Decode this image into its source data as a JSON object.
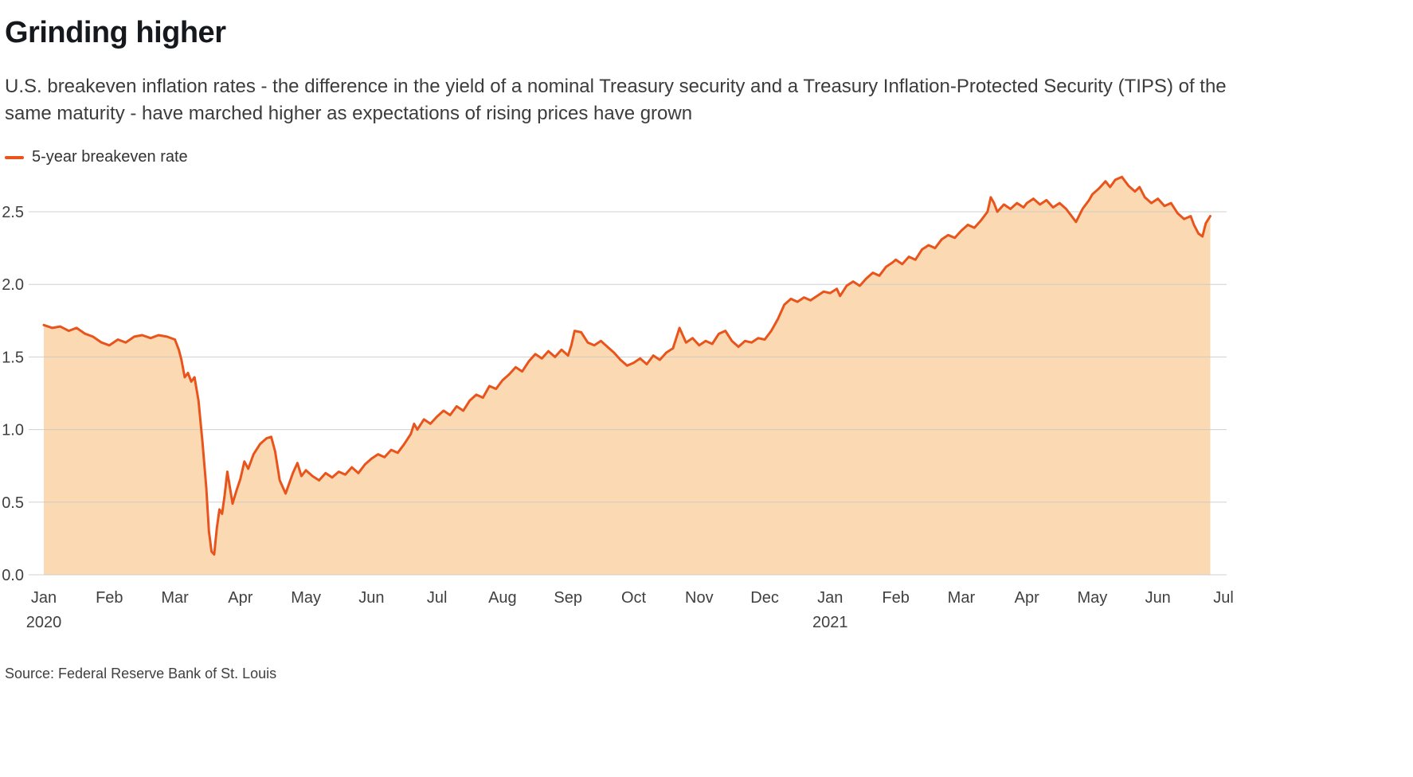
{
  "header": {
    "title": "Grinding higher",
    "subtitle": "U.S. breakeven inflation rates - the difference in the yield of a nominal Treasury security and a Treasury Inflation-Protected Security (TIPS) of the same maturity - have marched higher as expectations of rising prices have grown"
  },
  "legend": {
    "label": "5-year breakeven rate"
  },
  "footer": {
    "source": "Source: Federal Reserve Bank of St. Louis"
  },
  "chart_data": {
    "type": "area",
    "title": "Grinding higher",
    "xlabel": "",
    "ylabel": "",
    "x_unit": "months since Jan 2020 (0 = Jan 2020, 18 = Jul 2021)",
    "x_tick_labels": [
      "Jan",
      "Feb",
      "Mar",
      "Apr",
      "May",
      "Jun",
      "Jul",
      "Aug",
      "Sep",
      "Oct",
      "Nov",
      "Dec",
      "Jan",
      "Feb",
      "Mar",
      "Apr",
      "May",
      "Jun",
      "Jul"
    ],
    "year_labels": [
      {
        "position": 0,
        "label": "2020"
      },
      {
        "position": 12,
        "label": "2021"
      }
    ],
    "y_ticks": [
      0.0,
      0.5,
      1.0,
      1.5,
      2.0,
      2.5
    ],
    "ylim": [
      0,
      2.5
    ],
    "grid": "horizontal",
    "legend_position": "top-left",
    "line_color": "#e8541c",
    "fill_color": "#fbd9b2",
    "series": [
      {
        "name": "5-year breakeven rate",
        "points": [
          [
            0,
            1.72
          ],
          [
            0.13,
            1.7
          ],
          [
            0.25,
            1.71
          ],
          [
            0.38,
            1.68
          ],
          [
            0.5,
            1.7
          ],
          [
            0.63,
            1.66
          ],
          [
            0.75,
            1.64
          ],
          [
            0.88,
            1.6
          ],
          [
            1,
            1.58
          ],
          [
            1.13,
            1.62
          ],
          [
            1.25,
            1.6
          ],
          [
            1.38,
            1.64
          ],
          [
            1.5,
            1.65
          ],
          [
            1.63,
            1.63
          ],
          [
            1.75,
            1.65
          ],
          [
            1.88,
            1.64
          ],
          [
            2,
            1.62
          ],
          [
            2.06,
            1.55
          ],
          [
            2.1,
            1.48
          ],
          [
            2.15,
            1.36
          ],
          [
            2.2,
            1.39
          ],
          [
            2.25,
            1.33
          ],
          [
            2.3,
            1.36
          ],
          [
            2.36,
            1.2
          ],
          [
            2.42,
            0.92
          ],
          [
            2.48,
            0.6
          ],
          [
            2.52,
            0.3
          ],
          [
            2.56,
            0.16
          ],
          [
            2.6,
            0.14
          ],
          [
            2.64,
            0.32
          ],
          [
            2.68,
            0.45
          ],
          [
            2.72,
            0.42
          ],
          [
            2.76,
            0.55
          ],
          [
            2.8,
            0.71
          ],
          [
            2.84,
            0.6
          ],
          [
            2.88,
            0.49
          ],
          [
            2.94,
            0.58
          ],
          [
            3,
            0.66
          ],
          [
            3.06,
            0.78
          ],
          [
            3.12,
            0.73
          ],
          [
            3.2,
            0.83
          ],
          [
            3.3,
            0.9
          ],
          [
            3.4,
            0.94
          ],
          [
            3.47,
            0.95
          ],
          [
            3.53,
            0.85
          ],
          [
            3.6,
            0.65
          ],
          [
            3.69,
            0.56
          ],
          [
            3.8,
            0.7
          ],
          [
            3.87,
            0.77
          ],
          [
            3.93,
            0.68
          ],
          [
            4,
            0.72
          ],
          [
            4.1,
            0.68
          ],
          [
            4.2,
            0.65
          ],
          [
            4.3,
            0.7
          ],
          [
            4.4,
            0.67
          ],
          [
            4.5,
            0.71
          ],
          [
            4.6,
            0.69
          ],
          [
            4.7,
            0.74
          ],
          [
            4.8,
            0.7
          ],
          [
            4.9,
            0.76
          ],
          [
            5,
            0.8
          ],
          [
            5.1,
            0.83
          ],
          [
            5.2,
            0.81
          ],
          [
            5.3,
            0.86
          ],
          [
            5.4,
            0.84
          ],
          [
            5.5,
            0.9
          ],
          [
            5.6,
            0.97
          ],
          [
            5.65,
            1.04
          ],
          [
            5.7,
            1.0
          ],
          [
            5.8,
            1.07
          ],
          [
            5.9,
            1.04
          ],
          [
            6,
            1.09
          ],
          [
            6.1,
            1.13
          ],
          [
            6.2,
            1.1
          ],
          [
            6.3,
            1.16
          ],
          [
            6.4,
            1.13
          ],
          [
            6.5,
            1.2
          ],
          [
            6.6,
            1.24
          ],
          [
            6.7,
            1.22
          ],
          [
            6.8,
            1.3
          ],
          [
            6.9,
            1.28
          ],
          [
            7,
            1.34
          ],
          [
            7.1,
            1.38
          ],
          [
            7.2,
            1.43
          ],
          [
            7.3,
            1.4
          ],
          [
            7.4,
            1.47
          ],
          [
            7.5,
            1.52
          ],
          [
            7.6,
            1.49
          ],
          [
            7.7,
            1.54
          ],
          [
            7.8,
            1.5
          ],
          [
            7.9,
            1.55
          ],
          [
            8,
            1.51
          ],
          [
            8.05,
            1.58
          ],
          [
            8.1,
            1.68
          ],
          [
            8.2,
            1.67
          ],
          [
            8.3,
            1.6
          ],
          [
            8.4,
            1.58
          ],
          [
            8.5,
            1.61
          ],
          [
            8.6,
            1.57
          ],
          [
            8.7,
            1.53
          ],
          [
            8.8,
            1.48
          ],
          [
            8.9,
            1.44
          ],
          [
            9,
            1.46
          ],
          [
            9.1,
            1.49
          ],
          [
            9.2,
            1.45
          ],
          [
            9.3,
            1.51
          ],
          [
            9.4,
            1.48
          ],
          [
            9.5,
            1.53
          ],
          [
            9.6,
            1.56
          ],
          [
            9.7,
            1.7
          ],
          [
            9.8,
            1.6
          ],
          [
            9.9,
            1.63
          ],
          [
            10,
            1.58
          ],
          [
            10.1,
            1.61
          ],
          [
            10.2,
            1.59
          ],
          [
            10.3,
            1.66
          ],
          [
            10.4,
            1.68
          ],
          [
            10.5,
            1.61
          ],
          [
            10.6,
            1.57
          ],
          [
            10.7,
            1.61
          ],
          [
            10.8,
            1.6
          ],
          [
            10.9,
            1.63
          ],
          [
            11,
            1.62
          ],
          [
            11.1,
            1.68
          ],
          [
            11.2,
            1.76
          ],
          [
            11.3,
            1.86
          ],
          [
            11.4,
            1.9
          ],
          [
            11.5,
            1.88
          ],
          [
            11.6,
            1.91
          ],
          [
            11.7,
            1.89
          ],
          [
            11.8,
            1.92
          ],
          [
            11.9,
            1.95
          ],
          [
            12,
            1.94
          ],
          [
            12.1,
            1.97
          ],
          [
            12.15,
            1.92
          ],
          [
            12.25,
            1.99
          ],
          [
            12.35,
            2.02
          ],
          [
            12.45,
            1.99
          ],
          [
            12.55,
            2.04
          ],
          [
            12.65,
            2.08
          ],
          [
            12.75,
            2.06
          ],
          [
            12.85,
            2.12
          ],
          [
            12.95,
            2.15
          ],
          [
            13,
            2.17
          ],
          [
            13.1,
            2.14
          ],
          [
            13.2,
            2.19
          ],
          [
            13.3,
            2.17
          ],
          [
            13.4,
            2.24
          ],
          [
            13.5,
            2.27
          ],
          [
            13.6,
            2.25
          ],
          [
            13.7,
            2.31
          ],
          [
            13.8,
            2.34
          ],
          [
            13.9,
            2.32
          ],
          [
            14,
            2.37
          ],
          [
            14.1,
            2.41
          ],
          [
            14.2,
            2.39
          ],
          [
            14.3,
            2.44
          ],
          [
            14.4,
            2.5
          ],
          [
            14.45,
            2.6
          ],
          [
            14.5,
            2.56
          ],
          [
            14.55,
            2.5
          ],
          [
            14.65,
            2.55
          ],
          [
            14.75,
            2.52
          ],
          [
            14.85,
            2.56
          ],
          [
            14.95,
            2.53
          ],
          [
            15,
            2.56
          ],
          [
            15.1,
            2.59
          ],
          [
            15.2,
            2.55
          ],
          [
            15.3,
            2.58
          ],
          [
            15.4,
            2.53
          ],
          [
            15.5,
            2.56
          ],
          [
            15.6,
            2.52
          ],
          [
            15.7,
            2.46
          ],
          [
            15.75,
            2.43
          ],
          [
            15.85,
            2.52
          ],
          [
            15.95,
            2.58
          ],
          [
            16,
            2.62
          ],
          [
            16.1,
            2.66
          ],
          [
            16.2,
            2.71
          ],
          [
            16.27,
            2.67
          ],
          [
            16.35,
            2.72
          ],
          [
            16.45,
            2.74
          ],
          [
            16.55,
            2.68
          ],
          [
            16.65,
            2.64
          ],
          [
            16.72,
            2.67
          ],
          [
            16.8,
            2.6
          ],
          [
            16.9,
            2.56
          ],
          [
            17,
            2.59
          ],
          [
            17.1,
            2.54
          ],
          [
            17.2,
            2.56
          ],
          [
            17.3,
            2.49
          ],
          [
            17.4,
            2.45
          ],
          [
            17.5,
            2.47
          ],
          [
            17.55,
            2.41
          ],
          [
            17.62,
            2.35
          ],
          [
            17.68,
            2.33
          ],
          [
            17.73,
            2.42
          ],
          [
            17.8,
            2.47
          ]
        ]
      }
    ]
  }
}
